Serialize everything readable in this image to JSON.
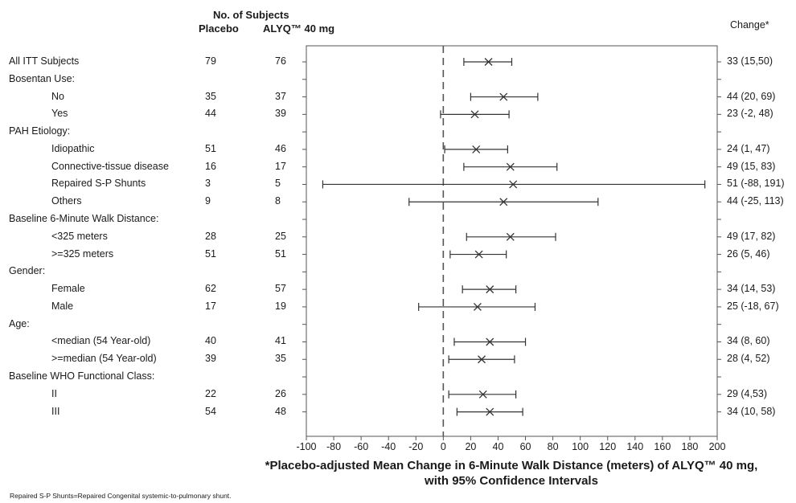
{
  "header": {
    "subjects_title": "No. of Subjects",
    "placebo_label": "Placebo",
    "drug_label": "ALYQ™ 40 mg",
    "change_label": "Change*"
  },
  "xaxis": {
    "title_line1": "*Placebo-adjusted Mean Change in 6-Minute Walk Distance (meters) of ALYQ™ 40 mg,",
    "title_line2": "with 95% Confidence Intervals"
  },
  "footnote": "Repaired S-P Shunts=Repaired Congenital systemic-to-pulmonary shunt.",
  "chart_data": {
    "type": "forest",
    "xlim": [
      -100,
      200
    ],
    "xticks": [
      -100,
      -80,
      -60,
      -40,
      -20,
      0,
      20,
      40,
      60,
      80,
      100,
      120,
      140,
      160,
      180,
      200
    ],
    "reference_line": 0,
    "rows": [
      {
        "label": "All ITT Subjects",
        "indent": false,
        "placebo": "79",
        "drug": "76",
        "est": 33,
        "lo": 15,
        "hi": 50,
        "change": "33 (15,50)"
      },
      {
        "label": "Bosentan Use:",
        "indent": false,
        "group": true
      },
      {
        "label": "No",
        "indent": true,
        "placebo": "35",
        "drug": "37",
        "est": 44,
        "lo": 20,
        "hi": 69,
        "change": "44 (20, 69)"
      },
      {
        "label": "Yes",
        "indent": true,
        "placebo": "44",
        "drug": "39",
        "est": 23,
        "lo": -2,
        "hi": 48,
        "change": "23 (-2, 48)"
      },
      {
        "label": "PAH Etiology:",
        "indent": false,
        "group": true
      },
      {
        "label": "Idiopathic",
        "indent": true,
        "placebo": "51",
        "drug": "46",
        "est": 24,
        "lo": 1,
        "hi": 47,
        "change": "24 (1, 47)"
      },
      {
        "label": "Connective-tissue disease",
        "indent": true,
        "placebo": "16",
        "drug": "17",
        "est": 49,
        "lo": 15,
        "hi": 83,
        "change": "49 (15, 83)"
      },
      {
        "label": "Repaired S-P Shunts",
        "indent": true,
        "placebo": "3",
        "drug": "5",
        "est": 51,
        "lo": -88,
        "hi": 191,
        "change": "51 (-88, 191)"
      },
      {
        "label": "Others",
        "indent": true,
        "placebo": "9",
        "drug": "8",
        "est": 44,
        "lo": -25,
        "hi": 113,
        "change": "44 (-25, 113)"
      },
      {
        "label": "Baseline 6-Minute Walk Distance:",
        "indent": false,
        "group": true
      },
      {
        "label": "<325 meters",
        "indent": true,
        "placebo": "28",
        "drug": "25",
        "est": 49,
        "lo": 17,
        "hi": 82,
        "change": "49 (17, 82)"
      },
      {
        "label": ">=325 meters",
        "indent": true,
        "placebo": "51",
        "drug": "51",
        "est": 26,
        "lo": 5,
        "hi": 46,
        "change": "26 (5, 46)"
      },
      {
        "label": "Gender:",
        "indent": false,
        "group": true
      },
      {
        "label": "Female",
        "indent": true,
        "placebo": "62",
        "drug": "57",
        "est": 34,
        "lo": 14,
        "hi": 53,
        "change": "34 (14, 53)"
      },
      {
        "label": "Male",
        "indent": true,
        "placebo": "17",
        "drug": "19",
        "est": 25,
        "lo": -18,
        "hi": 67,
        "change": "25 (-18, 67)"
      },
      {
        "label": "Age:",
        "indent": false,
        "group": true
      },
      {
        "label": "<median (54 Year-old)",
        "indent": true,
        "placebo": "40",
        "drug": "41",
        "est": 34,
        "lo": 8,
        "hi": 60,
        "change": "34 (8, 60)"
      },
      {
        "label": ">=median (54 Year-old)",
        "indent": true,
        "placebo": "39",
        "drug": "35",
        "est": 28,
        "lo": 4,
        "hi": 52,
        "change": "28 (4, 52)"
      },
      {
        "label": "Baseline WHO Functional Class:",
        "indent": false,
        "group": true
      },
      {
        "label": "II",
        "indent": true,
        "placebo": "22",
        "drug": "26",
        "est": 29,
        "lo": 4,
        "hi": 53,
        "change": "29 (4,53)"
      },
      {
        "label": "III",
        "indent": true,
        "placebo": "54",
        "drug": "48",
        "est": 34,
        "lo": 10,
        "hi": 58,
        "change": "34 (10, 58)"
      }
    ]
  }
}
